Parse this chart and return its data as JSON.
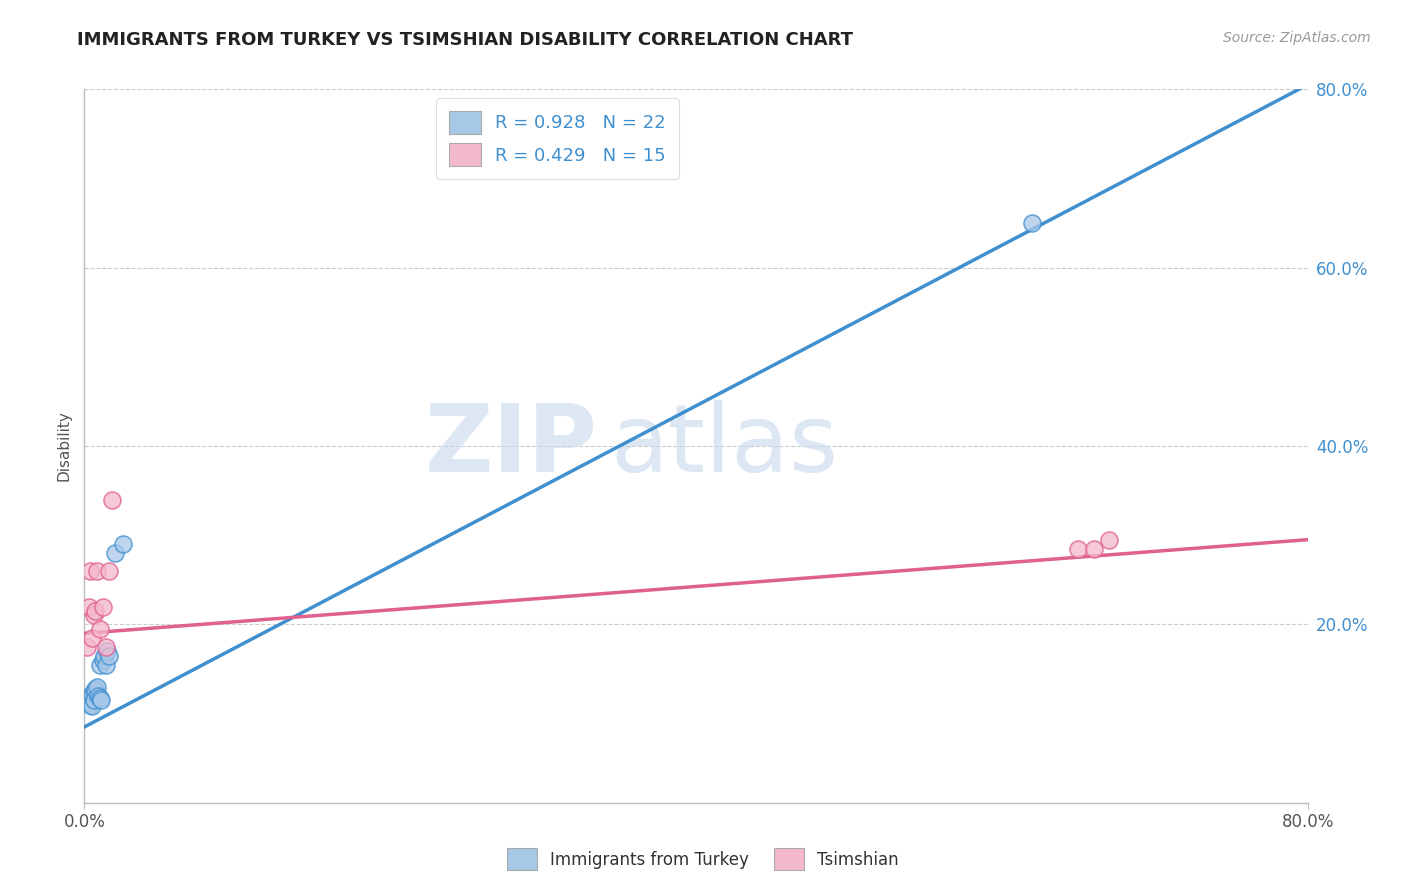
{
  "title": "IMMIGRANTS FROM TURKEY VS TSIMSHIAN DISABILITY CORRELATION CHART",
  "source": "Source: ZipAtlas.com",
  "ylabel": "Disability",
  "xlim": [
    0.0,
    0.8
  ],
  "ylim": [
    0.0,
    0.8
  ],
  "xtick_vals": [
    0.0,
    0.8
  ],
  "xtick_labels": [
    "0.0%",
    "80.0%"
  ],
  "ytick_vals": [
    0.2,
    0.4,
    0.6,
    0.8
  ],
  "ytick_labels": [
    "20.0%",
    "40.0%",
    "60.0%",
    "80.0%"
  ],
  "blue_r": "R = 0.928",
  "blue_n": "N = 22",
  "pink_r": "R = 0.429",
  "pink_n": "N = 15",
  "blue_color": "#a8c8e8",
  "pink_color": "#f4b8cc",
  "blue_line_color": "#4090d0",
  "pink_line_color": "#e06090",
  "watermark_zip": "ZIP",
  "watermark_atlas": "atlas",
  "legend_label_blue": "Immigrants from Turkey",
  "legend_label_pink": "Tsimshian",
  "blue_scatter_x": [
    0.002,
    0.003,
    0.004,
    0.004,
    0.005,
    0.005,
    0.006,
    0.006,
    0.007,
    0.008,
    0.009,
    0.01,
    0.01,
    0.011,
    0.012,
    0.013,
    0.014,
    0.015,
    0.016,
    0.02,
    0.025,
    0.62
  ],
  "blue_scatter_y": [
    0.115,
    0.112,
    0.118,
    0.11,
    0.122,
    0.108,
    0.125,
    0.115,
    0.128,
    0.13,
    0.12,
    0.118,
    0.155,
    0.115,
    0.16,
    0.165,
    0.155,
    0.17,
    0.165,
    0.28,
    0.29,
    0.65
  ],
  "pink_scatter_x": [
    0.002,
    0.003,
    0.004,
    0.005,
    0.006,
    0.007,
    0.008,
    0.01,
    0.012,
    0.014,
    0.016,
    0.018,
    0.65,
    0.66,
    0.67
  ],
  "pink_scatter_y": [
    0.175,
    0.22,
    0.26,
    0.185,
    0.21,
    0.215,
    0.26,
    0.195,
    0.22,
    0.175,
    0.26,
    0.34,
    0.285,
    0.285,
    0.295
  ],
  "blue_line_x": [
    0.0,
    0.8
  ],
  "blue_line_y": [
    0.085,
    0.805
  ],
  "pink_line_x": [
    0.0,
    0.8
  ],
  "pink_line_y": [
    0.19,
    0.295
  ],
  "grid_yticks": [
    0.2,
    0.4,
    0.6,
    0.8
  ],
  "title_fontsize": 13,
  "source_fontsize": 10,
  "tick_fontsize": 12,
  "legend_fontsize": 13
}
